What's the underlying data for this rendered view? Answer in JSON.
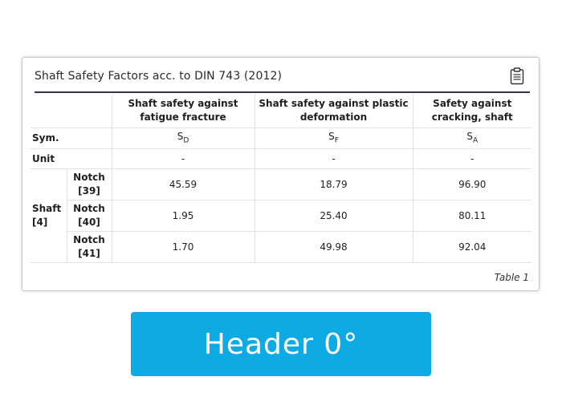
{
  "card": {
    "title": "Shaft Safety Factors acc. to DIN 743 (2012)",
    "caption": "Table 1",
    "icon": "clipboard-icon"
  },
  "table": {
    "headers": [
      "Shaft safety against fatigue fracture",
      "Shaft safety against plastic deformation",
      "Safety against cracking, shaft"
    ],
    "sym_label": "Sym.",
    "symbols": [
      {
        "base": "S",
        "sub": "D"
      },
      {
        "base": "S",
        "sub": "F"
      },
      {
        "base": "S",
        "sub": "A"
      }
    ],
    "unit_label": "Unit",
    "units": [
      "-",
      "-",
      "-"
    ],
    "shaft_label": "Shaft [4]",
    "rows": [
      {
        "label": "Notch [39]",
        "values": [
          "45.59",
          "18.79",
          "96.90"
        ]
      },
      {
        "label": "Notch [40]",
        "values": [
          "1.95",
          "25.40",
          "80.11"
        ]
      },
      {
        "label": "Notch [41]",
        "values": [
          "1.70",
          "49.98",
          "92.04"
        ]
      }
    ]
  },
  "button": {
    "label": "Header 0°",
    "color": "#0eaae3"
  }
}
